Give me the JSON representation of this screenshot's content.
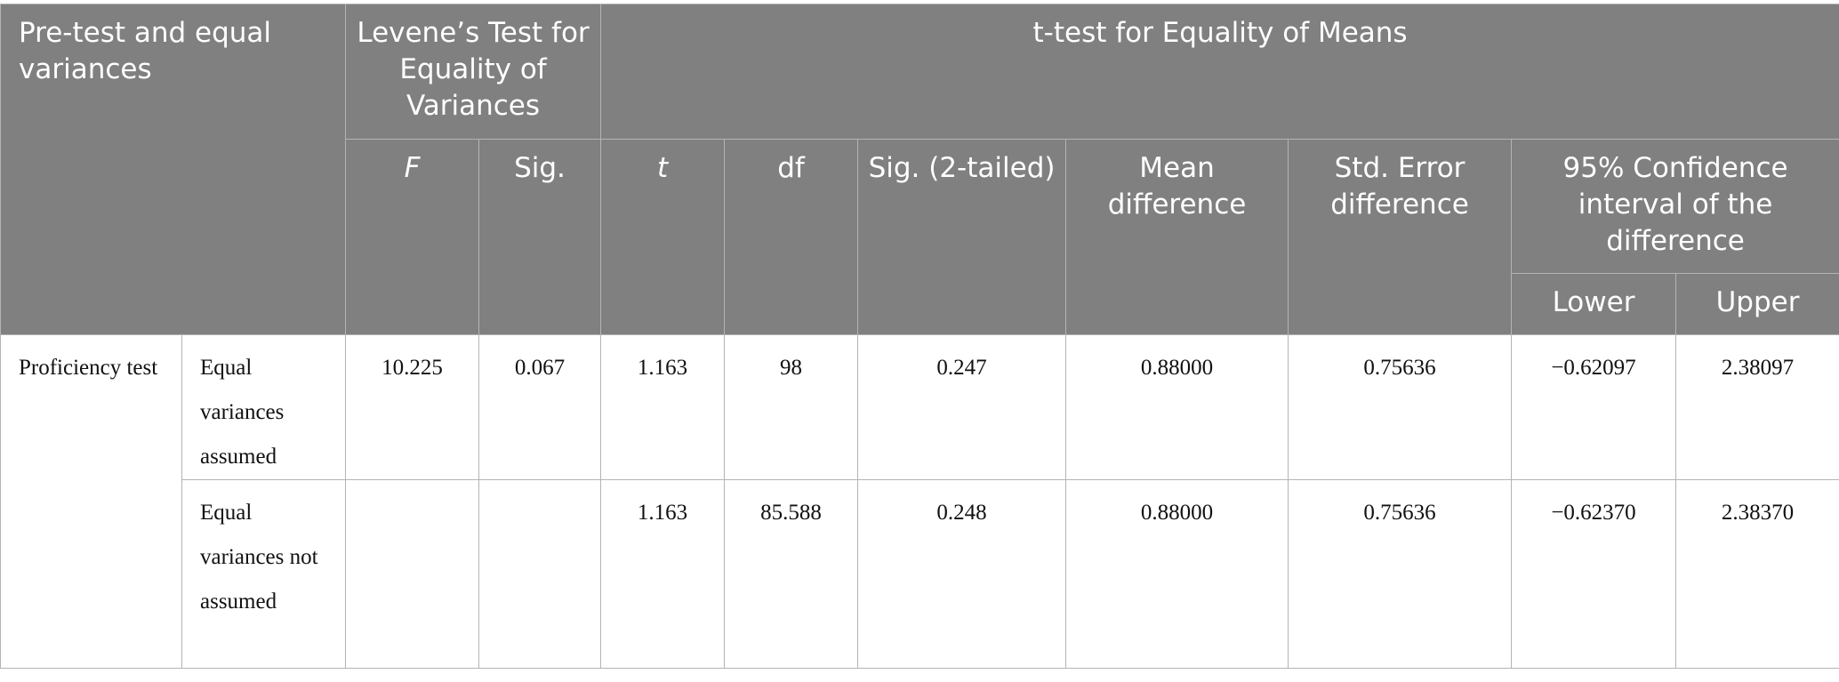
{
  "header": {
    "group_label": "Pre-test and equal variances",
    "levene": "Levene’s Test for Equality of Variances",
    "ttest": "t-test for Equality of Means",
    "columns": {
      "F": "F",
      "sig": "Sig.",
      "t": "t",
      "df": "df",
      "sig2": "Sig. (2-tailed)",
      "mean_diff": "Mean difference",
      "se_diff": "Std. Error difference",
      "ci": "95% Confidence interval of the difference",
      "lower": "Lower",
      "upper": "Upper"
    }
  },
  "rows": [
    {
      "group": "Proficiency test",
      "label": "Equal variances assumed",
      "F": "10.225",
      "sig": "0.067",
      "t": "1.163",
      "df": "98",
      "sig2": "0.247",
      "mean_diff": "0.88000",
      "se_diff": "0.75636",
      "lower": "−0.62097",
      "upper": "2.38097"
    },
    {
      "label": "Equal variances not assumed",
      "F": "",
      "sig": "",
      "t": "1.163",
      "df": "85.588",
      "sig2": "0.248",
      "mean_diff": "0.88000",
      "se_diff": "0.75636",
      "lower": "−0.62370",
      "upper": "2.38370"
    }
  ],
  "colors": {
    "header_bg": "#7f807f",
    "header_text": "#ffffff",
    "border": "#b4b4b4"
  }
}
